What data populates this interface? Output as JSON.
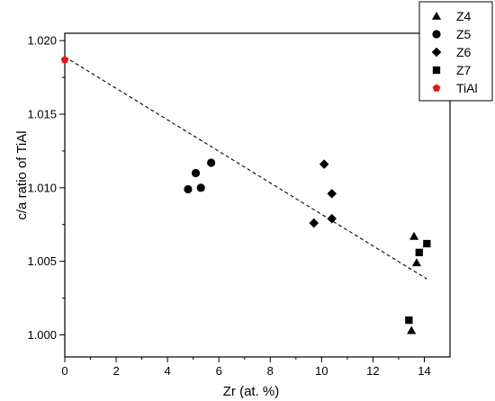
{
  "chart_data": {
    "type": "scatter",
    "title": "",
    "xlabel": "Zr (at. %)",
    "ylabel": "c/a ratio of TiAl",
    "xlim": [
      0,
      15
    ],
    "ylim": [
      0.9985,
      1.0205
    ],
    "xticks": [
      "0",
      "2",
      "4",
      "6",
      "8",
      "10",
      "12",
      "14"
    ],
    "yticks": [
      "1.000",
      "1.005",
      "1.010",
      "1.015",
      "1.020"
    ],
    "grid": false,
    "legend_position": "top-right",
    "series": [
      {
        "name": "Z4",
        "marker": "triangle",
        "color": "#000000",
        "points": [
          [
            13.6,
            1.0067
          ],
          [
            13.7,
            1.0049
          ],
          [
            13.5,
            1.0003
          ]
        ]
      },
      {
        "name": "Z5",
        "marker": "circle",
        "color": "#000000",
        "points": [
          [
            4.8,
            1.0099
          ],
          [
            5.1,
            1.011
          ],
          [
            5.3,
            1.01
          ],
          [
            5.7,
            1.0117
          ]
        ]
      },
      {
        "name": "Z6",
        "marker": "diamond",
        "color": "#000000",
        "points": [
          [
            9.7,
            1.0076
          ],
          [
            10.1,
            1.0116
          ],
          [
            10.4,
            1.0096
          ],
          [
            10.4,
            1.0079
          ]
        ]
      },
      {
        "name": "Z7",
        "marker": "square",
        "color": "#000000",
        "points": [
          [
            13.8,
            1.0056
          ],
          [
            14.1,
            1.0062
          ],
          [
            13.4,
            1.001
          ]
        ]
      },
      {
        "name": "TiAl",
        "marker": "pentagon",
        "color": "#e8161b",
        "points": [
          [
            0,
            1.0187
          ]
        ]
      }
    ],
    "trendline": {
      "style": "dashed",
      "color": "#000000",
      "points": [
        [
          0,
          1.0189
        ],
        [
          14.1,
          1.0038
        ]
      ]
    }
  }
}
